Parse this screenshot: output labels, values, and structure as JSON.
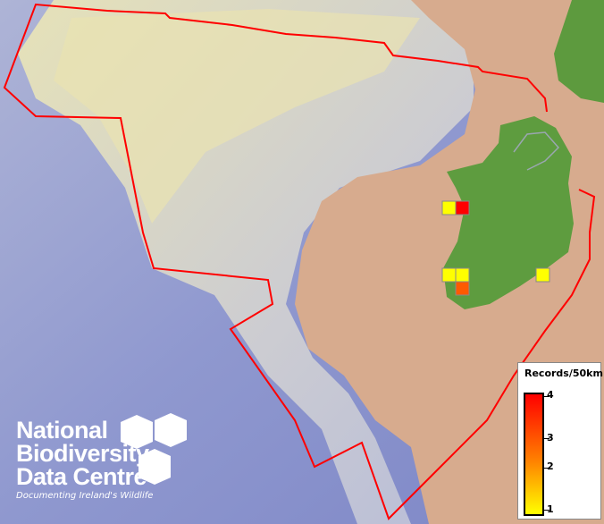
{
  "map": {
    "boundary_color": "#ff0000",
    "records": [
      {
        "value": 1,
        "color": "#ffff00"
      },
      {
        "value": 4,
        "color": "#ff0000"
      },
      {
        "value": 1,
        "color": "#ffff00"
      },
      {
        "value": 1,
        "color": "#ffff00"
      },
      {
        "value": 3,
        "color": "#ff5a00"
      },
      {
        "value": 1,
        "color": "#ffff00"
      }
    ]
  },
  "legend": {
    "title": "Records/50km",
    "labels": [
      "4",
      "3",
      "2",
      "1"
    ],
    "min_color": "#ffff00",
    "max_color": "#ff0000"
  },
  "logo": {
    "line1": "National",
    "line2": "Biodiversity",
    "line3": "Data Centre",
    "tagline": "Documenting Ireland's Wildlife"
  }
}
